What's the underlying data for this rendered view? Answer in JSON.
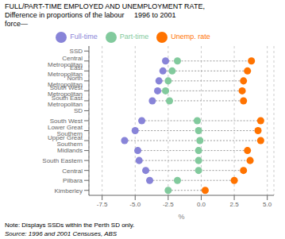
{
  "chart_data": {
    "type": "scatter",
    "title": "FULL/PART-TIME EMPLOYED AND UNEMPLOYMENT RATE,\nDifference in proportions of the labour     1996 to 2001\nforce—",
    "annotations": [
      "Note: Displays SSDs within the Perth SD only.",
      "Source: 1996 and 2001 Censuses, ABS"
    ],
    "x_label": "%",
    "categories": [
      "SSD",
      "Central Metropolitan",
      "East Metropolitan",
      "North Metropolitan",
      "South West Metropolitan",
      "South East Metropolitan",
      "SD",
      "South West",
      "Lower Great Southern",
      "Upper Great Southern",
      "Midlands",
      "South Eastern",
      "Central",
      "Pilbara",
      "Kimberley"
    ],
    "series": [
      {
        "name": "Full-time",
        "color": "#8884d8",
        "values": [
          null,
          -2.7,
          -2.9,
          -3.2,
          -3.3,
          -3.7,
          null,
          -4.5,
          -5.0,
          -5.8,
          -4.8,
          -4.7,
          -4.2,
          -3.9,
          null
        ]
      },
      {
        "name": "Part-time",
        "color": "#82ca9d",
        "values": [
          null,
          -1.8,
          -2.2,
          -2.5,
          -2.7,
          -2.4,
          null,
          -0.3,
          -0.2,
          -0.1,
          -0.2,
          -0.2,
          -0.2,
          -1.8,
          -2.5
        ]
      },
      {
        "name": "Unemp. rate",
        "color": "#ff7300",
        "values": [
          null,
          3.8,
          3.5,
          3.2,
          3.1,
          3.2,
          null,
          4.5,
          4.3,
          4.5,
          3.5,
          3.7,
          3.2,
          2.5,
          0.3
        ]
      }
    ],
    "orientation": "horizontal",
    "xlim": [
      -8.5,
      5.5
    ],
    "xticks": [
      -7.5,
      {
        "value": -5.0,
        "label": "-5.0"
      },
      -2.5,
      {
        "value": 0.0,
        "label": "0.0"
      },
      2.5,
      {
        "value": 5.0,
        "label": "5.0"
      }
    ],
    "grid": true,
    "legend": "top"
  }
}
